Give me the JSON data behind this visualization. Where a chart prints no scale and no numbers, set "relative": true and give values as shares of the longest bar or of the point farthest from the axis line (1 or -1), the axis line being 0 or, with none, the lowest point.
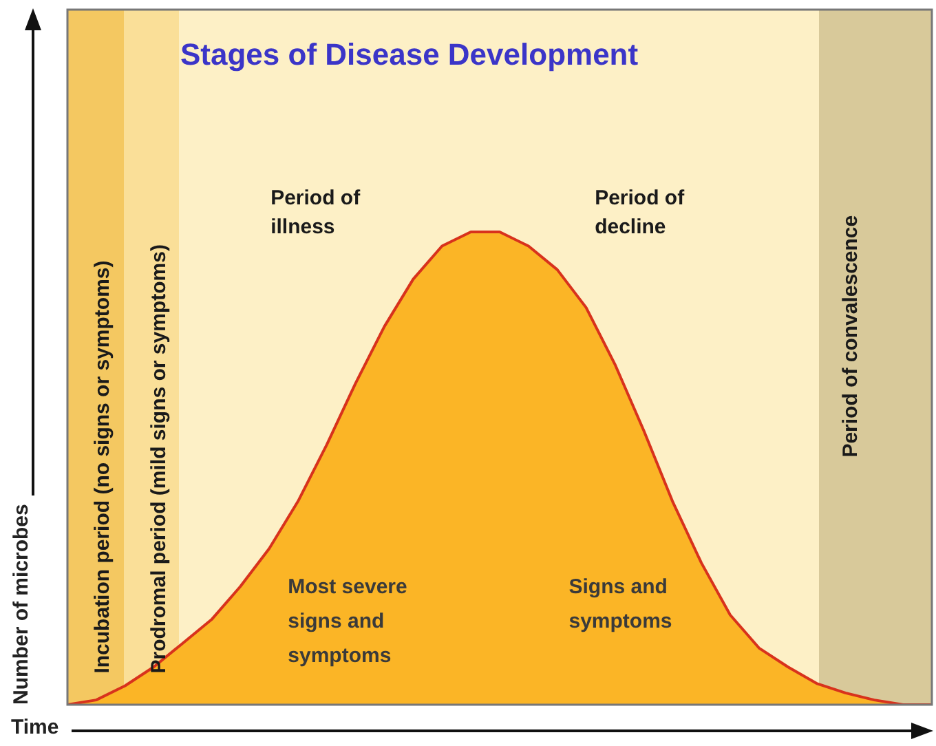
{
  "chart_data": {
    "type": "area",
    "title": "Stages of Disease Development",
    "xlabel": "Time",
    "ylabel": "Number of microbes",
    "relative": true,
    "tick_labels": false,
    "legend": false,
    "marker": "none",
    "categories": [
      null,
      null,
      null,
      null,
      null,
      null,
      null,
      null,
      null,
      null,
      null,
      null,
      null,
      null,
      null,
      null,
      null,
      null,
      null,
      null,
      null,
      null,
      null,
      null,
      null,
      null,
      null,
      null,
      null,
      null,
      null
    ],
    "series": [
      {
        "color": "#d8321c",
        "values": [
          0,
          0.01,
          0.04,
          0.08,
          0.13,
          0.18,
          0.25,
          0.33,
          0.43,
          0.55,
          0.68,
          0.8,
          0.9,
          0.97,
          1,
          1,
          0.97,
          0.92,
          0.84,
          0.72,
          0.58,
          0.43,
          0.3,
          0.19,
          0.12,
          0.08,
          0.045,
          0.025,
          0.01,
          0,
          0
        ]
      }
    ],
    "annotations": [
      "Incubation period (no signs or symptoms)",
      "Prodromal period (mild signs or symptoms)",
      "Period of illness",
      "Period of decline",
      "Period of convalescence",
      "Most severe signs and symptoms",
      "Signs and symptoms"
    ]
  }
}
